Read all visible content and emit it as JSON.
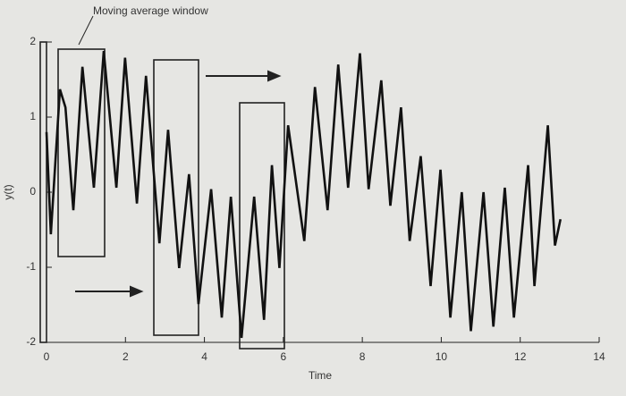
{
  "chart_data": {
    "type": "line",
    "annotation": "Moving average window",
    "xlabel": "Time",
    "ylabel": "y(t)",
    "xlim": [
      0,
      14
    ],
    "ylim": [
      -2,
      2
    ],
    "xticks": [
      0,
      2,
      4,
      6,
      8,
      10,
      12,
      14
    ],
    "yticks": [
      -2,
      -1,
      0,
      1,
      2
    ],
    "series": [
      {
        "color": "#111111",
        "x": [
          0,
          0.11,
          0.34,
          0.48,
          0.68,
          0.91,
          1.2,
          1.45,
          1.77,
          1.99,
          2.29,
          2.52,
          2.86,
          3.08,
          3.36,
          3.61,
          3.85,
          4.17,
          4.44,
          4.67,
          4.94,
          5.26,
          5.51,
          5.71,
          5.9,
          6.12,
          6.53,
          6.8,
          7.12,
          7.39,
          7.64,
          7.94,
          8.16,
          8.48,
          8.71,
          8.98,
          9.2,
          9.48,
          9.73,
          9.98,
          10.23,
          10.52,
          10.75,
          11.07,
          11.32,
          11.61,
          11.84,
          12.2,
          12.36,
          12.7,
          12.88,
          13.02
        ],
        "values": [
          0.8,
          -0.56,
          1.37,
          1.13,
          -0.24,
          1.67,
          0.06,
          1.88,
          0.06,
          1.79,
          -0.15,
          1.55,
          -0.68,
          0.83,
          -1.01,
          0.24,
          -1.49,
          0.04,
          -1.67,
          -0.06,
          -1.94,
          -0.06,
          -1.7,
          0.36,
          -1.01,
          0.89,
          -0.65,
          1.4,
          -0.24,
          1.7,
          0.06,
          1.85,
          0.04,
          1.49,
          -0.18,
          1.13,
          -0.65,
          0.48,
          -1.25,
          0.3,
          -1.67,
          0,
          -1.85,
          0,
          -1.79,
          0.06,
          -1.67,
          0.36,
          -1.25,
          0.89,
          -0.71,
          -0.36
        ]
      }
    ]
  }
}
